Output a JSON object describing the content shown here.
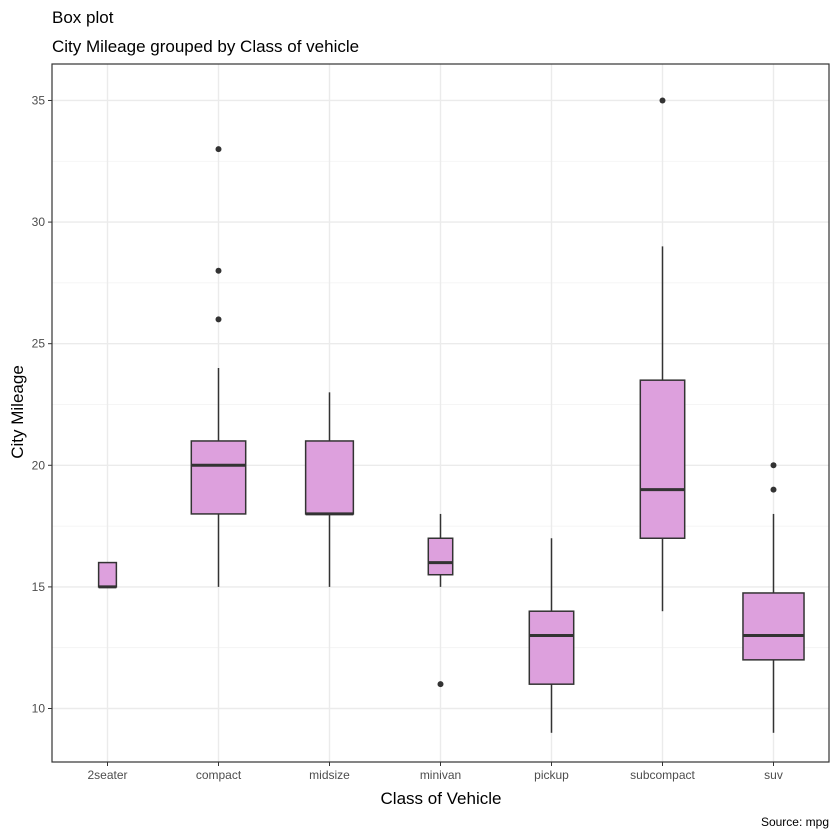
{
  "chart_data": {
    "type": "box",
    "title": "Box plot",
    "subtitle": "City Mileage grouped by Class of vehicle",
    "xlabel": "Class of Vehicle",
    "ylabel": "City Mileage",
    "caption": "Source: mpg",
    "ylim": [
      7.8,
      36.5
    ],
    "yticks": [
      10,
      15,
      20,
      25,
      30,
      35
    ],
    "grid": true,
    "fill_color": "#dda0dd",
    "line_color": "#333333",
    "categories": [
      "2seater",
      "compact",
      "midsize",
      "minivan",
      "pickup",
      "subcompact",
      "suv"
    ],
    "boxes": [
      {
        "category": "2seater",
        "q1": 15,
        "median": 15,
        "q3": 16,
        "whisker_low": 15,
        "whisker_high": 16,
        "outliers": [],
        "relative_width": 0.16
      },
      {
        "category": "compact",
        "q1": 18,
        "median": 20,
        "q3": 21,
        "whisker_low": 15,
        "whisker_high": 24,
        "outliers": [
          26,
          28,
          33
        ],
        "relative_width": 0.49
      },
      {
        "category": "midsize",
        "q1": 18,
        "median": 18,
        "q3": 21,
        "whisker_low": 15,
        "whisker_high": 23,
        "outliers": [],
        "relative_width": 0.43
      },
      {
        "category": "minivan",
        "q1": 15.5,
        "median": 16,
        "q3": 17,
        "whisker_low": 15,
        "whisker_high": 18,
        "outliers": [
          11
        ],
        "relative_width": 0.22
      },
      {
        "category": "pickup",
        "q1": 11,
        "median": 13,
        "q3": 14,
        "whisker_low": 9,
        "whisker_high": 17,
        "outliers": [],
        "relative_width": 0.4
      },
      {
        "category": "subcompact",
        "q1": 17,
        "median": 19,
        "q3": 23.5,
        "whisker_low": 14,
        "whisker_high": 29,
        "outliers": [
          35
        ],
        "relative_width": 0.4
      },
      {
        "category": "suv",
        "q1": 12,
        "median": 13,
        "q3": 14.75,
        "whisker_low": 9,
        "whisker_high": 18,
        "outliers": [
          19,
          20
        ],
        "relative_width": 0.55
      }
    ]
  }
}
